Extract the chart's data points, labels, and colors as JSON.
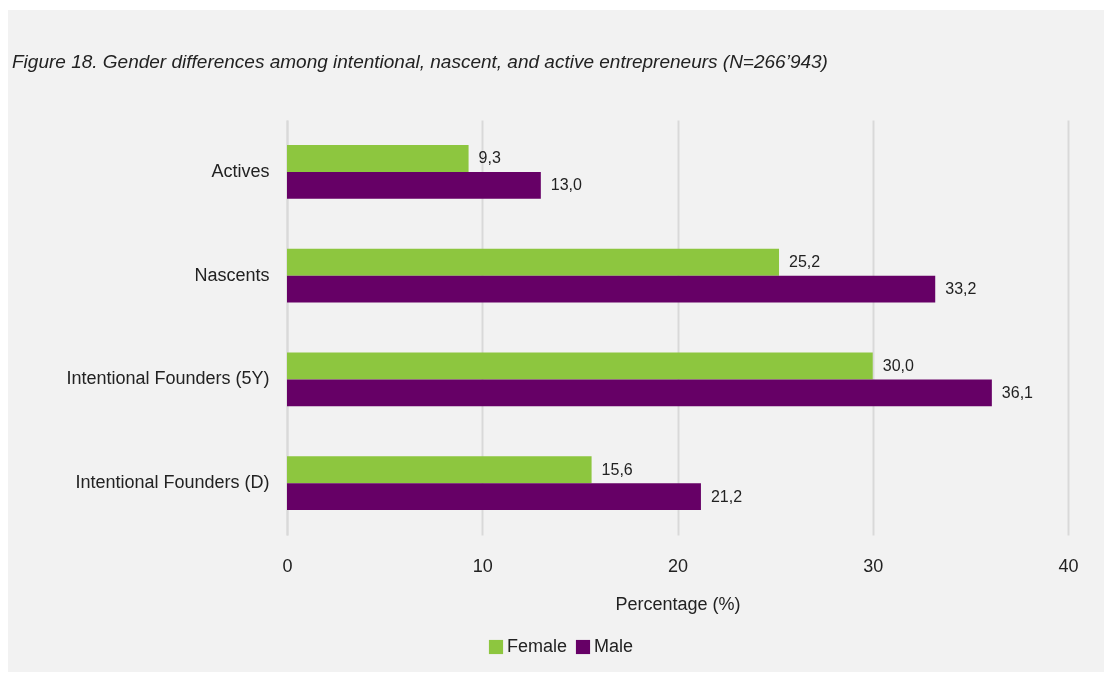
{
  "chart_data": {
    "type": "bar",
    "orientation": "horizontal",
    "title": "Figure 18. Gender differences among intentional, nascent, and active entrepreneurs (N=266’943)",
    "xlabel": "Percentage (%)",
    "categories": [
      "Actives",
      "Nascents",
      "Intentional Founders (5Y)",
      "Intentional Founders (D)"
    ],
    "series": [
      {
        "name": "Female",
        "color": "#8dc63f",
        "values": [
          9.3,
          25.2,
          30.0,
          15.6
        ],
        "value_labels": [
          "9,3",
          "25,2",
          "30,0",
          "15,6"
        ]
      },
      {
        "name": "Male",
        "color": "#660066",
        "values": [
          13.0,
          33.2,
          36.1,
          21.2
        ],
        "value_labels": [
          "13,0",
          "33,2",
          "36,1",
          "21,2"
        ]
      }
    ],
    "xlim": [
      0,
      40
    ],
    "xticks": [
      0,
      10,
      20,
      30,
      40
    ],
    "grid": "x",
    "legend": "bottom"
  }
}
